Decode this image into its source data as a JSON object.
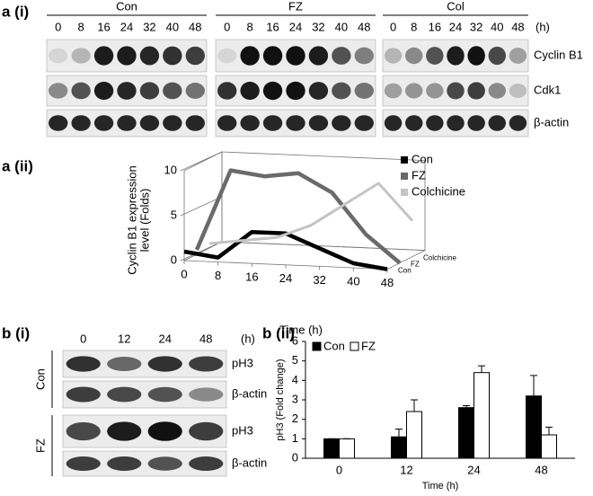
{
  "figure": {
    "a_i": {
      "label": "a (i)",
      "unit": "(h)",
      "groups": [
        {
          "name": "Con",
          "times": [
            "0",
            "8",
            "16",
            "24",
            "32",
            "40",
            "48"
          ]
        },
        {
          "name": "FZ",
          "times": [
            "0",
            "8",
            "16",
            "24",
            "32",
            "40",
            "48"
          ]
        },
        {
          "name": "Col",
          "times": [
            "0",
            "8",
            "16",
            "24",
            "32",
            "40",
            "48"
          ]
        }
      ],
      "rows": [
        "Cyclin B1",
        "Cdk1",
        "β-actin"
      ]
    },
    "b_i": {
      "label": "b (i)",
      "unit": "(h)",
      "times": [
        "0",
        "12",
        "24",
        "48"
      ],
      "groups": [
        {
          "name": "Con",
          "rows": [
            "pH3",
            "β-actin"
          ]
        },
        {
          "name": "FZ",
          "rows": [
            "pH3",
            "β-actin"
          ]
        }
      ]
    }
  },
  "chart_data": [
    {
      "type": "line3d",
      "label": "a (ii)",
      "x": [
        0,
        8,
        16,
        24,
        32,
        40,
        48
      ],
      "xlim": [
        0,
        48
      ],
      "xticks": [
        0,
        8,
        16,
        24,
        32,
        40,
        48
      ],
      "ylim": [
        0,
        10
      ],
      "yticks": [
        0,
        5,
        10
      ],
      "xlabel": "Time (h)",
      "ylabel": [
        "Cyclin B1 expression",
        "level (Folds)"
      ],
      "series": [
        {
          "name": "Con",
          "color": "#000000",
          "values": [
            1,
            0.5,
            3.5,
            3.5,
            2,
            0.5,
            0
          ]
        },
        {
          "name": "FZ",
          "color": "#6a6a6a",
          "values": [
            0.5,
            9.5,
            9,
            9.5,
            7.5,
            3,
            0
          ]
        },
        {
          "name": "Colchicine",
          "color": "#c4c4c4",
          "values": [
            0.5,
            1,
            1.5,
            3,
            5.5,
            8,
            4
          ]
        }
      ]
    },
    {
      "type": "bar",
      "label": "b (ii)",
      "categories": [
        "0",
        "12",
        "24",
        "48"
      ],
      "ylim": [
        0,
        6
      ],
      "yticks": [
        0,
        1,
        2,
        3,
        4,
        5,
        6
      ],
      "xlabel": "Time (h)",
      "ylabel": "pH3 (Fold change)",
      "series": [
        {
          "name": "Con",
          "color": "#000000",
          "values": [
            1,
            1.1,
            2.6,
            3.2
          ],
          "errors": [
            0,
            0.4,
            0.1,
            1.05
          ]
        },
        {
          "name": "FZ",
          "color": "#ffffff",
          "values": [
            1,
            2.4,
            4.4,
            1.2
          ],
          "errors": [
            0,
            0.6,
            0.35,
            0.4
          ]
        }
      ]
    }
  ]
}
